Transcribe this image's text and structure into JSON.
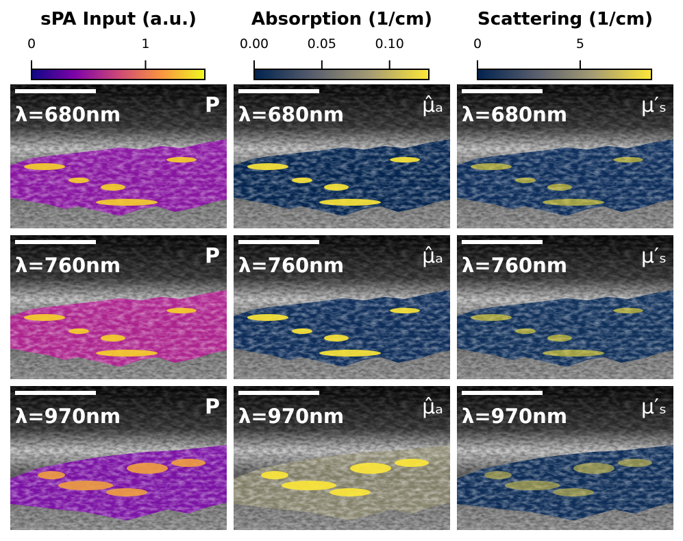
{
  "columns": [
    {
      "title": "sPA Input (a.u.)",
      "symbol": "P",
      "colorbar": {
        "lim": [
          0,
          1.52
        ],
        "ticks": [
          0,
          1
        ],
        "colors": [
          "#0d0887",
          "#7e03a8",
          "#cc4778",
          "#f89540",
          "#f0f921"
        ]
      }
    },
    {
      "title": "Absorption (1/cm)",
      "symbol": "μ̂ₐ",
      "colorbar": {
        "lim": [
          0,
          0.129
        ],
        "ticks": [
          {
            "value": 0,
            "label": "0.00"
          },
          0.05,
          {
            "value": 0.1,
            "label": "0.10"
          }
        ],
        "colors": [
          "#00224e",
          "#575d6d",
          "#a59c74",
          "#fee838"
        ]
      }
    },
    {
      "title": "Scattering (1/cm)",
      "symbol": "μ′ₛ",
      "colorbar": {
        "lim": [
          0,
          8.47
        ],
        "ticks": [
          0,
          5
        ],
        "colors": [
          "#00224e",
          "#575d6d",
          "#a59c74",
          "#fee838"
        ]
      }
    }
  ],
  "rows": [
    "λ=680nm",
    "λ=760nm",
    "λ=970nm"
  ]
}
